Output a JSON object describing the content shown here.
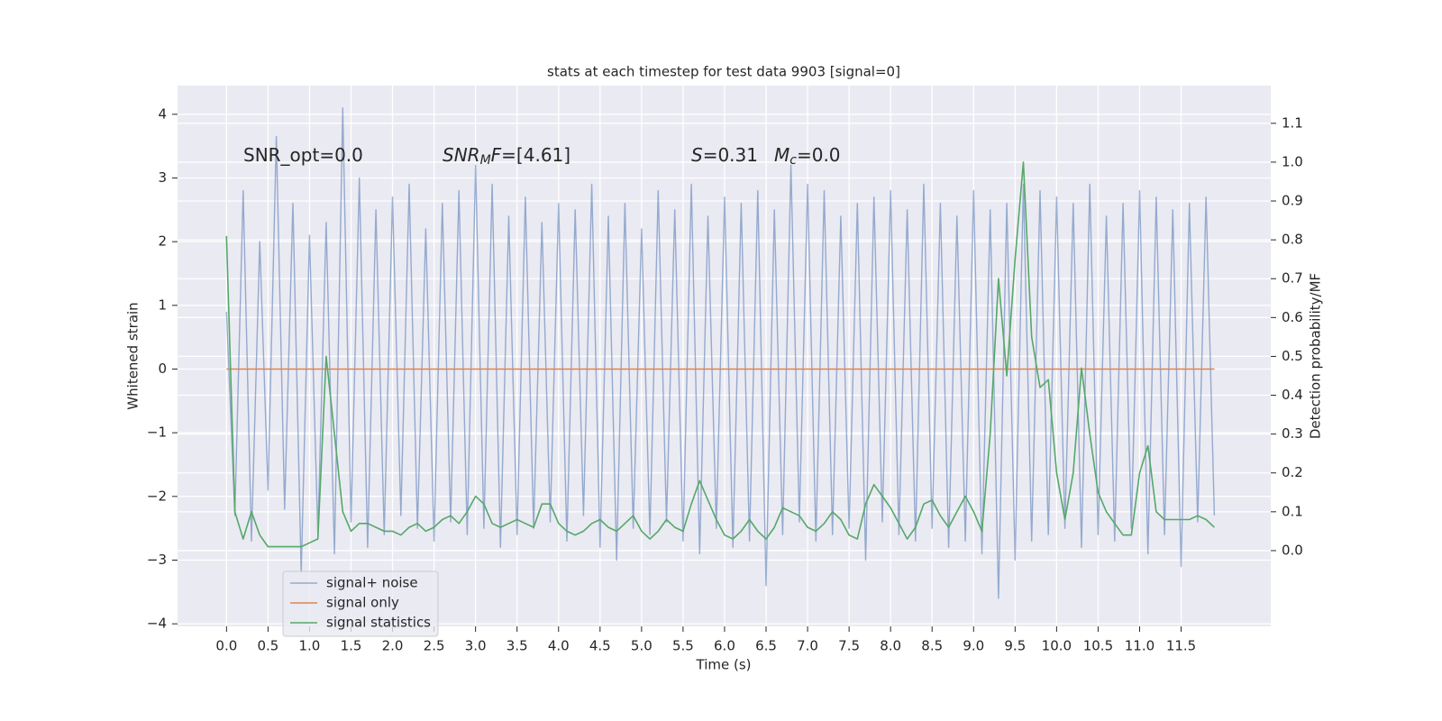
{
  "chart_data": {
    "type": "line",
    "title": "stats at each timestep for test data 9903 [signal=0]",
    "xlabel": "Time (s)",
    "ylabel": "Whitened strain",
    "y2label": "Detection probability/MF",
    "xlim": [
      -0.59,
      12.58
    ],
    "ylim": [
      -4.04,
      4.45
    ],
    "y2lim": [
      -0.195,
      1.197
    ],
    "xticks": [
      {
        "value": 0,
        "label": "0.0"
      },
      0.5,
      {
        "value": 1,
        "label": "1.0"
      },
      1.5,
      {
        "value": 2,
        "label": "2.0"
      },
      2.5,
      {
        "value": 3,
        "label": "3.0"
      },
      3.5,
      {
        "value": 4,
        "label": "4.0"
      },
      4.5,
      {
        "value": 5,
        "label": "5.0"
      },
      5.5,
      {
        "value": 6,
        "label": "6.0"
      },
      6.5,
      {
        "value": 7,
        "label": "7.0"
      },
      7.5,
      {
        "value": 8,
        "label": "8.0"
      },
      8.5,
      {
        "value": 9,
        "label": "9.0"
      },
      9.5,
      {
        "value": 10,
        "label": "10.0"
      },
      10.5,
      {
        "value": 11,
        "label": "11.0"
      },
      11.5
    ],
    "yticks": [
      {
        "value": -4,
        "label": "−4"
      },
      {
        "value": -3,
        "label": "−3"
      },
      {
        "value": -2,
        "label": "−2"
      },
      {
        "value": -1,
        "label": "−1"
      },
      0,
      1,
      2,
      3,
      4
    ],
    "y2ticks": [
      {
        "value": 0,
        "label": "0.0"
      },
      0.1,
      0.2,
      0.3,
      0.4,
      0.5,
      0.6,
      0.7,
      0.8,
      0.9,
      {
        "value": 1,
        "label": "1.0"
      },
      1.1
    ],
    "grid": true,
    "legend": "lower left",
    "annotations": [
      [
        {
          "text": "SNR_opt=0.0",
          "style": "normal"
        }
      ],
      [
        {
          "text": "SNR",
          "style": "italic"
        },
        {
          "text": "M",
          "style": "italic-sub"
        },
        {
          "text": "F",
          "style": "italic"
        },
        {
          "text": "=[4.61]",
          "style": "normal"
        }
      ],
      [
        {
          "text": "S",
          "style": "italic"
        },
        {
          "text": "=0.31",
          "style": "normal"
        }
      ],
      [
        {
          "text": "M",
          "style": "italic"
        },
        {
          "text": "c",
          "style": "italic-sub"
        },
        {
          "text": "=0.0",
          "style": "normal"
        }
      ]
    ],
    "x": [
      0,
      0.1,
      0.2,
      0.3,
      0.4,
      0.5,
      0.6,
      0.7,
      0.8,
      0.9,
      1,
      1.1,
      1.2,
      1.3,
      1.4,
      1.5,
      1.6,
      1.7,
      1.8,
      1.9,
      2,
      2.1,
      2.2,
      2.3,
      2.4,
      2.5,
      2.6,
      2.7,
      2.8,
      2.9,
      3,
      3.1,
      3.2,
      3.3,
      3.4,
      3.5,
      3.6,
      3.7,
      3.8,
      3.9,
      4,
      4.1,
      4.2,
      4.3,
      4.4,
      4.5,
      4.6,
      4.7,
      4.8,
      4.9,
      5,
      5.1,
      5.2,
      5.3,
      5.4,
      5.5,
      5.6,
      5.7,
      5.8,
      5.9,
      6,
      6.1,
      6.2,
      6.3,
      6.4,
      6.5,
      6.6,
      6.7,
      6.8,
      6.9,
      7,
      7.1,
      7.2,
      7.3,
      7.4,
      7.5,
      7.6,
      7.7,
      7.8,
      7.9,
      8,
      8.1,
      8.2,
      8.3,
      8.4,
      8.5,
      8.6,
      8.7,
      8.8,
      8.9,
      9,
      9.1,
      9.2,
      9.3,
      9.4,
      9.5,
      9.6,
      9.7,
      9.8,
      9.9,
      10,
      10.1,
      10.2,
      10.3,
      10.4,
      10.5,
      10.6,
      10.7,
      10.8,
      10.9,
      11,
      11.1,
      11.2,
      11.3,
      11.4,
      11.5,
      11.6,
      11.7,
      11.8,
      11.9
    ],
    "series": [
      {
        "name": "signal+ noise",
        "color": "#4c72b0",
        "alpha": 0.55,
        "values": [
          0.9,
          -2.3,
          2.8,
          -2.7,
          2.0,
          -1.9,
          3.65,
          -2.2,
          2.6,
          -3.2,
          2.1,
          -2.6,
          2.3,
          -2.9,
          4.1,
          -2.4,
          3.0,
          -2.8,
          2.5,
          -2.6,
          2.7,
          -2.3,
          2.9,
          -2.5,
          2.2,
          -2.7,
          2.6,
          -2.4,
          2.8,
          -2.6,
          3.2,
          -2.5,
          2.9,
          -2.8,
          2.4,
          -2.6,
          2.7,
          -2.5,
          2.3,
          -2.4,
          2.6,
          -2.7,
          2.5,
          -2.3,
          2.9,
          -2.8,
          2.4,
          -3.0,
          2.6,
          -2.5,
          2.2,
          -2.6,
          2.8,
          -2.4,
          2.5,
          -2.7,
          2.9,
          -2.9,
          2.4,
          -2.5,
          2.7,
          -2.8,
          2.6,
          -2.7,
          2.8,
          -3.4,
          2.5,
          -2.6,
          3.2,
          -2.4,
          2.9,
          -2.7,
          2.8,
          -2.6,
          2.4,
          -2.5,
          2.6,
          -3.0,
          2.7,
          -2.4,
          2.8,
          -2.6,
          2.5,
          -2.7,
          2.9,
          -2.5,
          2.6,
          -2.8,
          2.4,
          -2.7,
          2.8,
          -2.9,
          2.5,
          -3.6,
          2.6,
          -3.0,
          2.9,
          -2.7,
          2.8,
          -2.6,
          2.7,
          -2.5,
          2.6,
          -2.8,
          2.9,
          -2.6,
          2.4,
          -2.7,
          2.6,
          -2.5,
          2.8,
          -2.9,
          2.7,
          -2.6,
          2.5,
          -3.1,
          2.6,
          -2.4,
          2.7,
          -2.3
        ]
      },
      {
        "name": "signal only",
        "color": "#dd8452",
        "alpha": 1,
        "values": [
          0,
          0,
          0,
          0,
          0,
          0,
          0,
          0,
          0,
          0,
          0,
          0,
          0,
          0,
          0,
          0,
          0,
          0,
          0,
          0,
          0,
          0,
          0,
          0,
          0,
          0,
          0,
          0,
          0,
          0,
          0,
          0,
          0,
          0,
          0,
          0,
          0,
          0,
          0,
          0,
          0,
          0,
          0,
          0,
          0,
          0,
          0,
          0,
          0,
          0,
          0,
          0,
          0,
          0,
          0,
          0,
          0,
          0,
          0,
          0,
          0,
          0,
          0,
          0,
          0,
          0,
          0,
          0,
          0,
          0,
          0,
          0,
          0,
          0,
          0,
          0,
          0,
          0,
          0,
          0,
          0,
          0,
          0,
          0,
          0,
          0,
          0,
          0,
          0,
          0,
          0,
          0,
          0,
          0,
          0,
          0,
          0,
          0,
          0,
          0,
          0,
          0,
          0,
          0,
          0,
          0,
          0,
          0,
          0,
          0,
          0,
          0,
          0,
          0,
          0,
          0,
          0,
          0,
          0,
          0
        ]
      },
      {
        "name": "signal statistics",
        "color": "#55a868",
        "alpha": 1,
        "axis": "y2",
        "values": [
          0.81,
          0.1,
          0.03,
          0.1,
          0.04,
          0.01,
          0.01,
          0.01,
          0.01,
          0.01,
          0.02,
          0.03,
          0.5,
          0.3,
          0.1,
          0.05,
          0.07,
          0.07,
          0.06,
          0.05,
          0.05,
          0.04,
          0.06,
          0.07,
          0.05,
          0.06,
          0.08,
          0.09,
          0.07,
          0.1,
          0.14,
          0.12,
          0.07,
          0.06,
          0.07,
          0.08,
          0.07,
          0.06,
          0.12,
          0.12,
          0.07,
          0.05,
          0.04,
          0.05,
          0.07,
          0.08,
          0.06,
          0.05,
          0.07,
          0.09,
          0.05,
          0.03,
          0.05,
          0.08,
          0.06,
          0.05,
          0.12,
          0.18,
          0.13,
          0.08,
          0.04,
          0.03,
          0.05,
          0.08,
          0.05,
          0.03,
          0.06,
          0.11,
          0.1,
          0.09,
          0.06,
          0.05,
          0.07,
          0.1,
          0.08,
          0.04,
          0.03,
          0.12,
          0.17,
          0.14,
          0.11,
          0.07,
          0.03,
          0.06,
          0.12,
          0.13,
          0.09,
          0.06,
          0.1,
          0.14,
          0.1,
          0.05,
          0.3,
          0.7,
          0.45,
          0.75,
          1.0,
          0.55,
          0.42,
          0.44,
          0.2,
          0.08,
          0.2,
          0.47,
          0.3,
          0.15,
          0.1,
          0.07,
          0.04,
          0.04,
          0.2,
          0.27,
          0.1,
          0.08,
          0.08,
          0.08,
          0.08,
          0.09,
          0.08,
          0.06
        ]
      }
    ]
  }
}
